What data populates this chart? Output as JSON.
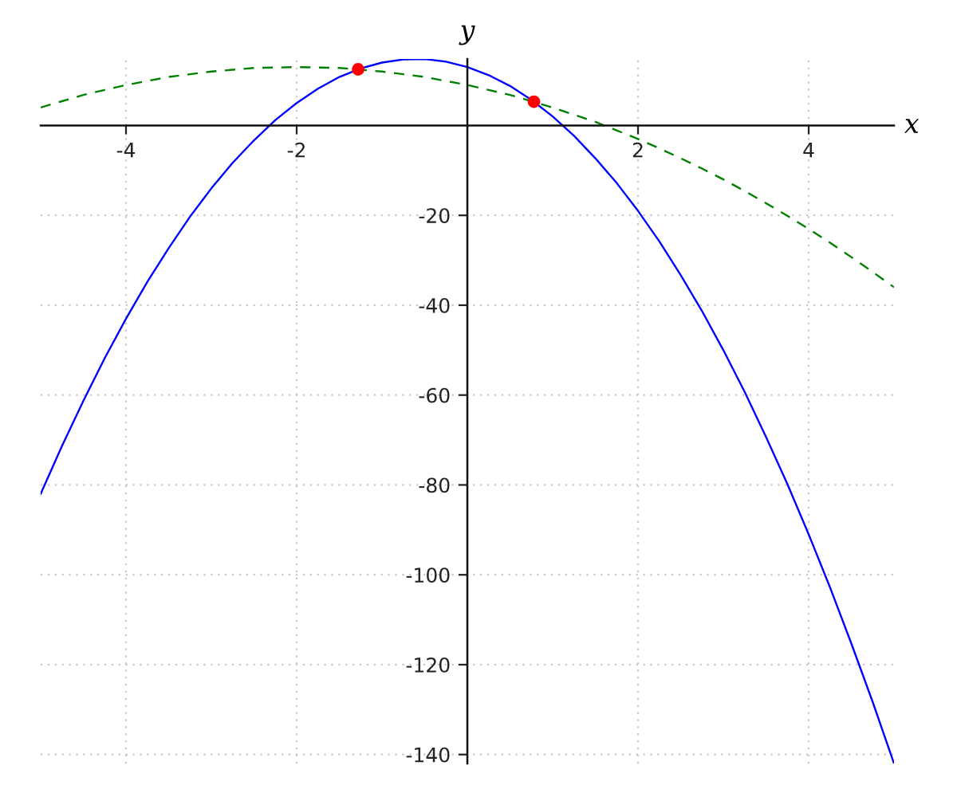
{
  "chart_data": {
    "type": "line",
    "xlabel": "x",
    "ylabel": "y",
    "x": [
      -5,
      -4.75,
      -4.5,
      -4.25,
      -4,
      -3.75,
      -3.5,
      -3.25,
      -3,
      -2.75,
      -2.5,
      -2.25,
      -2,
      -1.75,
      -1.5,
      -1.25,
      -1,
      -0.75,
      -0.5,
      -0.25,
      0,
      0.25,
      0.5,
      0.75,
      1,
      1.25,
      1.5,
      1.75,
      2,
      2.25,
      2.5,
      2.75,
      3,
      3.25,
      3.5,
      3.75,
      4,
      4.25,
      4.5,
      4.75,
      5
    ],
    "series": [
      {
        "color": "#0000ff",
        "line_style": "solid",
        "values": [
          -82,
          -71.3,
          -61.3,
          -51.8,
          -43,
          -34.8,
          -27.3,
          -20.3,
          -14,
          -8.3,
          -3.3,
          1.2,
          5,
          8.2,
          10.8,
          12.7,
          14,
          14.7,
          14.8,
          14.2,
          13,
          11.2,
          8.8,
          5.7,
          2,
          -2.3,
          -7.3,
          -12.8,
          -19,
          -25.8,
          -33.3,
          -41.3,
          -50,
          -59.3,
          -69.3,
          -79.8,
          -91,
          -102.8,
          -115.3,
          -128.3,
          -142
        ]
      },
      {
        "color": "#008000",
        "line_style": "dashed",
        "values": [
          4,
          5.4,
          6.8,
          7.9,
          9,
          9.9,
          10.8,
          11.4,
          12,
          12.4,
          12.8,
          12.9,
          13,
          12.9,
          12.8,
          12.4,
          12,
          11.4,
          10.8,
          9.9,
          9,
          7.9,
          6.8,
          5.4,
          4,
          2.4,
          0.8,
          -1.1,
          -3,
          -5.1,
          -7.3,
          -9.6,
          -12,
          -14.6,
          -17.3,
          -20.1,
          -23,
          -26.1,
          -29.3,
          -32.6,
          -36
        ]
      },
      {
        "type": "scatter",
        "color": "#ff0000",
        "marker": "circle",
        "x": [
          -1.28,
          0.78
        ],
        "values": [
          12.5,
          5.3
        ]
      }
    ],
    "xlim": [
      -5,
      5
    ],
    "ylim": [
      -142,
      14.8
    ],
    "xticks": [
      -4,
      -2,
      2,
      4
    ],
    "yticks": [
      -140,
      -120,
      -100,
      -80,
      -60,
      -40,
      -20
    ],
    "grid": true
  }
}
